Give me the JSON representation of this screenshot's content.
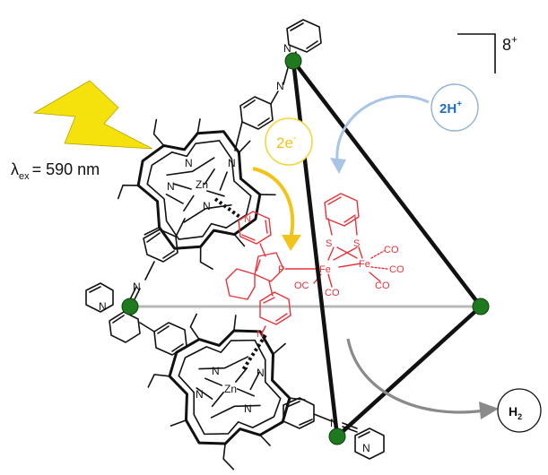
{
  "excitation": {
    "lambda_symbol": "λ",
    "lambda_subscript": "ex",
    "value": "= 590 nm"
  },
  "charge": {
    "base": "8",
    "sup": "+"
  },
  "electrons": {
    "base": "2e",
    "sup": "-"
  },
  "protons": {
    "base": "2H",
    "sup": "+"
  },
  "product": {
    "base": "H",
    "sub": "2"
  },
  "atoms": {
    "N": "N",
    "Zn": "Zn",
    "P": "P",
    "S": "S",
    "Fe": "Fe",
    "CO": "CO",
    "OC": "OC"
  },
  "colors": {
    "lightning": "#f5e10c",
    "electron_arrow": "#f2c318",
    "electron_circle": "#f5d63a",
    "proton_arrow": "#a9c4e4",
    "proton_text": "#1f6fc1",
    "proton_circle": "#8eb1d8",
    "catalyst": "#e8333b",
    "vertex_node": "#1f7a1f",
    "product_arrow": "#8a8a8a",
    "edge_front": "#111111",
    "edge_back": "#b8b8b8"
  }
}
